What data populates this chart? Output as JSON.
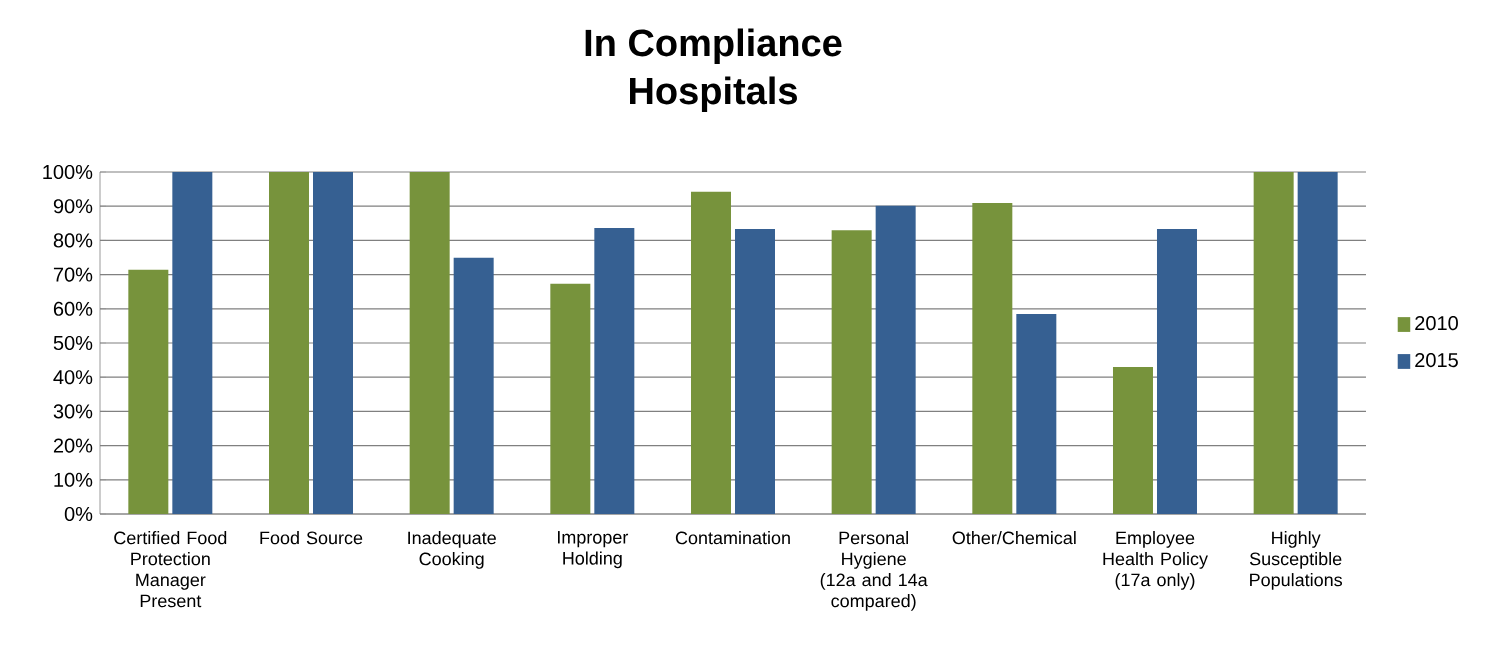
{
  "chart_data": {
    "type": "bar",
    "title": "In Compliance\nHospitals",
    "categories": [
      "Certified Food Protection Manager Present",
      "Food Source",
      "Inadequate Cooking",
      "Improper Holding",
      "Contamination",
      "Personal Hygiene (12a and 14a compared)",
      "Other/Chemical",
      "Employee Health Policy (17a only)",
      "Highly Susceptible Populations"
    ],
    "series": [
      {
        "name": "2010",
        "color": "#77933c",
        "values": [
          71.4,
          100,
          100,
          67.3,
          94.2,
          83.0,
          90.9,
          43.0,
          100
        ]
      },
      {
        "name": "2015",
        "color": "#366092",
        "values": [
          100,
          100,
          74.9,
          83.6,
          83.3,
          90.1,
          58.5,
          83.3,
          100
        ]
      }
    ],
    "ylim": [
      0,
      100
    ],
    "yticks": [
      {
        "value": 0,
        "label": "0%"
      },
      {
        "value": 10,
        "label": "10%"
      },
      {
        "value": 20,
        "label": "20%"
      },
      {
        "value": 30,
        "label": "30%"
      },
      {
        "value": 40,
        "label": "40%"
      },
      {
        "value": 50,
        "label": "50%"
      },
      {
        "value": 60,
        "label": "60%"
      },
      {
        "value": 70,
        "label": "70%"
      },
      {
        "value": 80,
        "label": "80%"
      },
      {
        "value": 90,
        "label": "90%"
      },
      {
        "value": 100,
        "label": "100%"
      }
    ],
    "grid": "y",
    "legend": "right"
  }
}
